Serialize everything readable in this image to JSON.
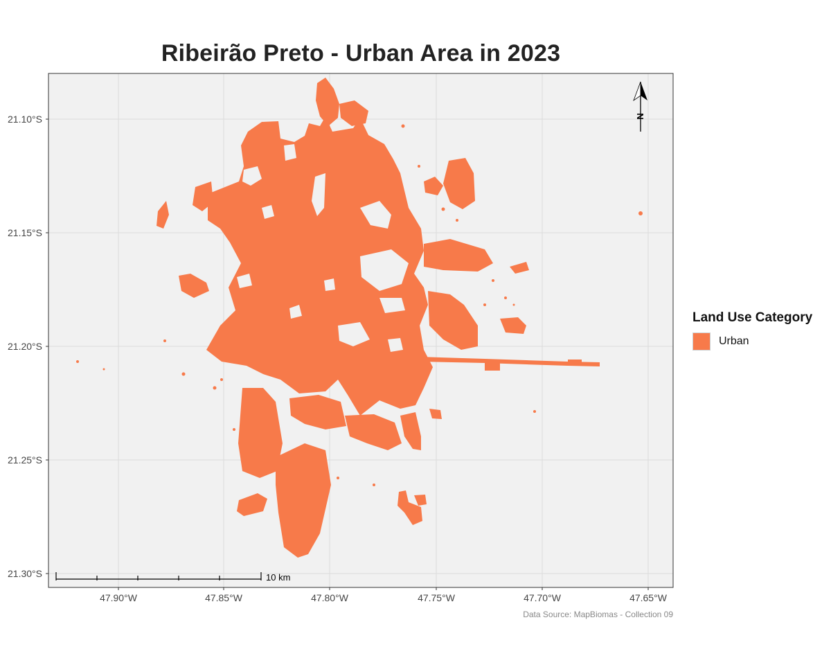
{
  "title": "Ribeirão Preto - Urban Area in 2023",
  "axes": {
    "y_ticks": [
      "21.10°S",
      "21.15°S",
      "21.20°S",
      "21.25°S",
      "21.30°S"
    ],
    "x_ticks": [
      "47.90°W",
      "47.85°W",
      "47.80°W",
      "47.75°W",
      "47.70°W",
      "47.65°W"
    ]
  },
  "north_arrow": {
    "label": "N",
    "icon": "north-arrow-icon"
  },
  "scale_bar": {
    "label": "10 km"
  },
  "legend": {
    "title": "Land Use Category",
    "items": [
      {
        "label": "Urban",
        "color": "#f77a4a"
      }
    ]
  },
  "caption": "Data Source: MapBiomas - Collection 09",
  "colors": {
    "urban": "#f77a4a",
    "panel": "#f1f1f1",
    "grid": "#dcdcdc",
    "frame": "#333333"
  }
}
